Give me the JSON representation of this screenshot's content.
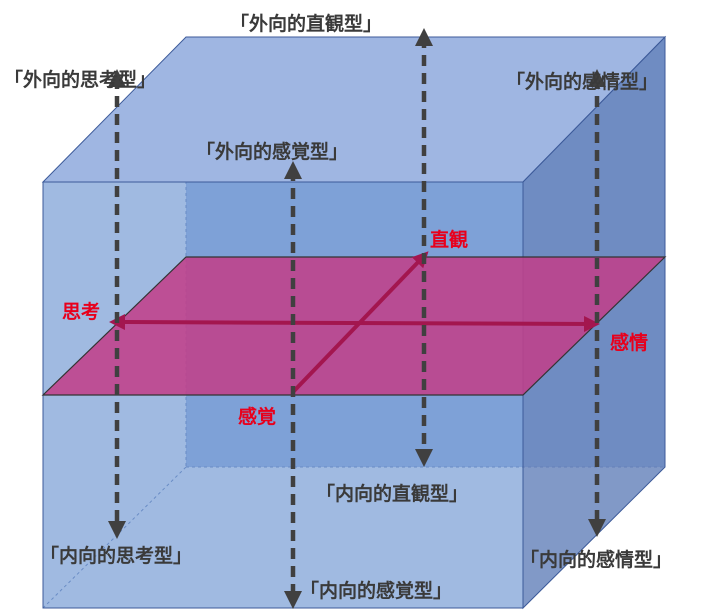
{
  "diagram": {
    "type_labels": {
      "extraverted_intuitive": "「外向的直観型」",
      "extraverted_thinking": "「外向的思考型」",
      "extraverted_feeling": "「外向的感情型」",
      "extraverted_sensing": "「外向的感覚型」",
      "introverted_intuitive": "「内向的直観型」",
      "introverted_thinking": "「内向的思考型」",
      "introverted_feeling": "「内向的感情型」",
      "introverted_sensing": "「内向的感覚型」"
    },
    "axis_labels": {
      "intuition": "直観",
      "thinking": "思考",
      "feeling": "感情",
      "sensation": "感覚"
    },
    "colors": {
      "cube_front": "#7b9fd6",
      "cube_top": "#9fb6e2",
      "cube_side": "#6b87bd",
      "cube_edge": "#3c5a99",
      "plane": "#c0408a",
      "axis": "#a3164f",
      "dashed_arrow": "#404040",
      "axis_text": "#e8001c",
      "type_text": "#3a3a3a"
    }
  }
}
